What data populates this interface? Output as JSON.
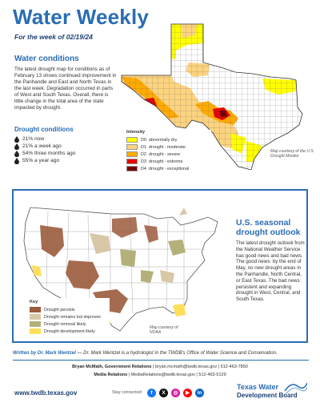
{
  "header": {
    "title": "Water Weekly",
    "subtitle": "For the week of 02/19/24"
  },
  "water_conditions": {
    "heading": "Water conditions",
    "body": "The latest drought map for conditions as of February 13 shows continued improvement in the Panhandle and East and North Texas in the last week. Degradation occurred in parts of West and South Texas. Overall, there is little change in the total area of the state impacted by drought.",
    "drought_heading": "Drought conditions",
    "drought_items": [
      "21% now",
      "21% a week ago",
      "54% three months ago",
      "55% a year ago"
    ]
  },
  "texas_map": {
    "legend_title": "Intensity",
    "legend": [
      {
        "code": "D0",
        "label": "abnormally dry",
        "color": "#ffff00"
      },
      {
        "code": "D1",
        "label": "drought - moderate",
        "color": "#fcd37f"
      },
      {
        "code": "D2",
        "label": "drought - severe",
        "color": "#ffaa00"
      },
      {
        "code": "D3",
        "label": "drought - extreme",
        "color": "#e60000"
      },
      {
        "code": "D4",
        "label": "drought - exceptional",
        "color": "#730000"
      }
    ],
    "credit": "Map courtesy of the U.S. Drought Monitor"
  },
  "seasonal_outlook": {
    "heading": "U.S. seasonal drought outlook",
    "body": "The latest drought outlook from the National Weather Service has good news and bad news. The good news: by the end of May, no new drought areas in the Panhandle, North Central, or East Texas. The bad news: persistent and expanding drought in West, Central, and South Texas.",
    "legend_title": "Key",
    "legend": [
      {
        "label": "Drought persists",
        "color": "#9b5b3c"
      },
      {
        "label": "Drought remains but improves",
        "color": "#d8c8a8"
      },
      {
        "label": "Drought removal likely",
        "color": "#b3b07a"
      },
      {
        "label": "Drought development likely",
        "color": "#ffde5a"
      }
    ],
    "credit": "Map courtesy of NOAA"
  },
  "footer": {
    "author_label": "Written by Dr. Mark Wentzel",
    "author_note": " — Dr. Mark Wentzel is a hydrologist in the TWDB's Office of Water Science and Conservation.",
    "contact_line1_bold": "Bryan McMath, Government Relations",
    "contact_line1": " | bryan.mcmath@twdb.texas.gov | 512-463-7850",
    "contact_line2_bold": "Media Relations",
    "contact_line2": " | MediaRelations@twdb.texas.gov | 512-463-5129",
    "website": "www.twdb.texas.gov",
    "stay_connected": "Stay connected:",
    "social": [
      {
        "icon": "facebook-icon",
        "color": "#1877f2",
        "glyph": "f"
      },
      {
        "icon": "x-icon",
        "color": "#111111",
        "glyph": "X"
      },
      {
        "icon": "instagram-icon",
        "color": "#d6249f",
        "glyph": "◎"
      },
      {
        "icon": "youtube-icon",
        "color": "#ff0000",
        "glyph": "▶"
      },
      {
        "icon": "linkedin-icon",
        "color": "#0a66c2",
        "glyph": "in"
      }
    ],
    "logo_line1": "Texas Water",
    "logo_line2": "Development Board"
  }
}
